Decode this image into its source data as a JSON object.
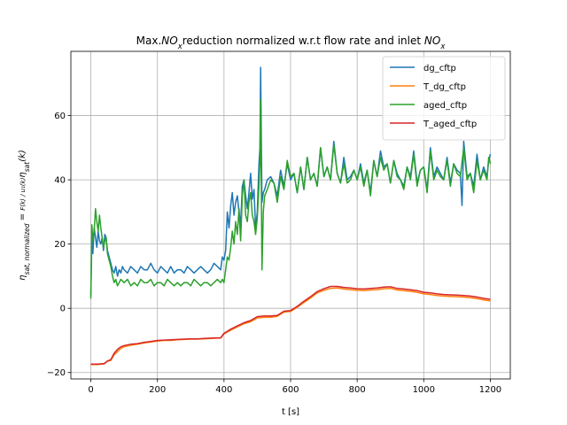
{
  "chart_data": {
    "type": "line",
    "title_parts": [
      {
        "t": "Max.",
        "it": false
      },
      {
        "t": "NO",
        "it": true
      },
      {
        "t": "x",
        "it": true,
        "sub": true
      },
      {
        "t": "reduction normalized w.r.t flow rate and inlet ",
        "it": false
      },
      {
        "t": "NO",
        "it": true
      },
      {
        "t": "x",
        "it": true,
        "sub": true
      }
    ],
    "xlabel": "t [s]",
    "ylabel_parts": [
      {
        "t": "η",
        "it": true
      },
      {
        "t": "sat, normalized",
        "it": true,
        "sub": true
      },
      {
        "t": " = ",
        "it": false
      },
      {
        "t": "F(k) / u₁(k)",
        "it": true,
        "frac": true
      },
      {
        "t": "η",
        "it": true
      },
      {
        "t": "sat",
        "it": true,
        "sub": true
      },
      {
        "t": "(k)",
        "it": true
      }
    ],
    "xlim": [
      -60,
      1260
    ],
    "ylim": [
      -22,
      80
    ],
    "xticks": [
      0,
      200,
      400,
      600,
      800,
      1000,
      1200
    ],
    "yticks": [
      -20,
      0,
      20,
      40,
      60
    ],
    "grid": true,
    "legend_position": "top-right",
    "series": [
      {
        "name": "dg_cftp",
        "color": "#1f77b4",
        "x": [
          0,
          3,
          6,
          10,
          14,
          18,
          22,
          26,
          30,
          34,
          38,
          42,
          46,
          50,
          55,
          60,
          65,
          70,
          75,
          80,
          85,
          90,
          95,
          100,
          110,
          120,
          130,
          140,
          150,
          160,
          170,
          180,
          190,
          200,
          210,
          220,
          230,
          240,
          250,
          260,
          270,
          280,
          290,
          300,
          310,
          320,
          330,
          340,
          350,
          360,
          370,
          380,
          390,
          395,
          400,
          405,
          410,
          415,
          420,
          425,
          430,
          435,
          440,
          445,
          450,
          455,
          460,
          465,
          470,
          475,
          480,
          485,
          490,
          495,
          500,
          505,
          508,
          510,
          512,
          514,
          518,
          522,
          530,
          540,
          550,
          560,
          570,
          580,
          590,
          600,
          610,
          620,
          630,
          640,
          650,
          660,
          670,
          680,
          690,
          700,
          710,
          720,
          730,
          740,
          750,
          760,
          770,
          780,
          790,
          800,
          810,
          820,
          830,
          840,
          850,
          860,
          870,
          880,
          890,
          900,
          910,
          920,
          930,
          940,
          950,
          960,
          970,
          980,
          990,
          1000,
          1010,
          1020,
          1030,
          1040,
          1050,
          1060,
          1070,
          1080,
          1090,
          1100,
          1110,
          1115,
          1120,
          1130,
          1140,
          1150,
          1160,
          1170,
          1180,
          1190,
          1195,
          1200
        ],
        "y": [
          4,
          22,
          17,
          25,
          22,
          19,
          24,
          21,
          20,
          22,
          18,
          23,
          22,
          18,
          16,
          14,
          12,
          11,
          13,
          10,
          12,
          11,
          13,
          12,
          11,
          13,
          12,
          11,
          13,
          12,
          12,
          14,
          12,
          11,
          13,
          12,
          11,
          13,
          11,
          12,
          12,
          11,
          13,
          12,
          11,
          12,
          13,
          12,
          11,
          12,
          14,
          13,
          12,
          16,
          15,
          18,
          30,
          25,
          32,
          36,
          29,
          33,
          35,
          30,
          26,
          38,
          40,
          35,
          31,
          36,
          42,
          34,
          37,
          25,
          30,
          45,
          50,
          75,
          55,
          33,
          36,
          37,
          40,
          41,
          39,
          35,
          43,
          38,
          45,
          40,
          42,
          36,
          44,
          37,
          47,
          40,
          42,
          38,
          50,
          41,
          44,
          40,
          52,
          42,
          39,
          47,
          40,
          41,
          43,
          40,
          45,
          39,
          43,
          36,
          46,
          41,
          49,
          44,
          45,
          39,
          46,
          42,
          40,
          38,
          44,
          41,
          49,
          39,
          43,
          44,
          37,
          50,
          41,
          44,
          42,
          40,
          47,
          39,
          45,
          43,
          42,
          32,
          52,
          41,
          42,
          38,
          48,
          40,
          44,
          41,
          46,
          48
        ]
      },
      {
        "name": "T_dg_cftp",
        "color": "#ff7f0e",
        "x": [
          0,
          20,
          40,
          50,
          60,
          70,
          80,
          90,
          100,
          120,
          140,
          160,
          180,
          200,
          220,
          240,
          260,
          280,
          300,
          320,
          340,
          360,
          380,
          390,
          400,
          420,
          440,
          460,
          480,
          500,
          520,
          540,
          560,
          580,
          600,
          620,
          640,
          660,
          680,
          700,
          720,
          740,
          760,
          780,
          800,
          820,
          840,
          860,
          880,
          900,
          920,
          940,
          960,
          980,
          1000,
          1020,
          1040,
          1060,
          1080,
          1100,
          1120,
          1140,
          1160,
          1180,
          1200
        ],
        "y": [
          -17.5,
          -17.5,
          -17.3,
          -16.5,
          -16.2,
          -14.5,
          -13.5,
          -12.5,
          -12.0,
          -11.5,
          -11.2,
          -10.8,
          -10.5,
          -10.2,
          -10.0,
          -10.0,
          -9.8,
          -9.7,
          -9.6,
          -9.6,
          -9.5,
          -9.4,
          -9.3,
          -9.3,
          -8.0,
          -6.8,
          -5.8,
          -4.8,
          -4.2,
          -3.0,
          -2.8,
          -2.8,
          -2.5,
          -1.2,
          -1.0,
          0.3,
          1.8,
          3.2,
          4.8,
          5.6,
          6.2,
          6.3,
          6.0,
          5.8,
          5.6,
          5.5,
          5.7,
          5.8,
          6.1,
          6.2,
          5.7,
          5.5,
          5.3,
          5.0,
          4.5,
          4.3,
          4.0,
          3.8,
          3.7,
          3.6,
          3.5,
          3.3,
          3.0,
          2.6,
          2.3
        ]
      },
      {
        "name": "aged_cftp",
        "color": "#2ca02c",
        "x": [
          0,
          3,
          6,
          10,
          14,
          18,
          22,
          26,
          30,
          34,
          38,
          42,
          46,
          50,
          55,
          60,
          65,
          70,
          75,
          80,
          90,
          100,
          110,
          120,
          130,
          140,
          150,
          160,
          170,
          180,
          190,
          200,
          210,
          220,
          230,
          240,
          250,
          260,
          270,
          280,
          290,
          300,
          310,
          320,
          330,
          340,
          350,
          360,
          370,
          380,
          390,
          395,
          400,
          405,
          410,
          415,
          420,
          425,
          430,
          435,
          440,
          445,
          450,
          455,
          460,
          465,
          470,
          475,
          480,
          485,
          490,
          495,
          500,
          505,
          508,
          510,
          512,
          514,
          518,
          522,
          530,
          540,
          550,
          560,
          570,
          580,
          590,
          600,
          610,
          620,
          630,
          640,
          650,
          660,
          670,
          680,
          690,
          700,
          710,
          720,
          730,
          740,
          750,
          760,
          770,
          780,
          790,
          800,
          810,
          820,
          830,
          840,
          850,
          860,
          870,
          880,
          890,
          900,
          910,
          920,
          930,
          940,
          950,
          960,
          970,
          980,
          990,
          1000,
          1010,
          1020,
          1030,
          1040,
          1050,
          1060,
          1070,
          1080,
          1090,
          1100,
          1110,
          1120,
          1130,
          1140,
          1150,
          1160,
          1170,
          1180,
          1190,
          1195,
          1200
        ],
        "y": [
          3,
          26,
          21,
          24,
          31,
          27,
          24,
          29,
          25,
          22,
          19,
          21,
          22,
          17,
          15,
          13,
          10,
          8,
          9,
          7,
          9,
          8,
          9,
          7,
          8,
          7,
          9,
          8,
          8,
          9,
          7,
          8,
          8,
          7,
          9,
          8,
          7,
          8,
          7,
          8,
          8,
          7,
          9,
          8,
          7,
          8,
          8,
          7,
          8,
          9,
          8,
          9,
          8,
          12,
          16,
          15,
          19,
          24,
          20,
          27,
          23,
          31,
          21,
          35,
          40,
          29,
          27,
          33,
          36,
          29,
          27,
          23,
          28,
          38,
          46,
          65,
          40,
          12,
          30,
          35,
          37,
          40,
          39,
          33,
          41,
          37,
          46,
          41,
          42,
          36,
          44,
          37,
          47,
          40,
          42,
          38,
          50,
          41,
          44,
          40,
          51,
          42,
          39,
          45,
          39,
          40,
          43,
          40,
          44,
          38,
          43,
          35,
          46,
          41,
          47,
          43,
          45,
          39,
          46,
          41,
          40,
          37,
          44,
          40,
          48,
          38,
          43,
          44,
          36,
          49,
          40,
          43,
          41,
          40,
          46,
          38,
          45,
          42,
          41,
          50,
          40,
          42,
          36,
          46,
          40,
          43,
          40,
          47,
          45
        ]
      },
      {
        "name": "T_aged_cftp",
        "color": "#d62728",
        "x": [
          0,
          20,
          40,
          50,
          60,
          70,
          80,
          90,
          100,
          120,
          140,
          160,
          180,
          200,
          220,
          240,
          260,
          280,
          300,
          320,
          340,
          360,
          380,
          390,
          400,
          420,
          440,
          460,
          480,
          500,
          520,
          540,
          560,
          580,
          600,
          620,
          640,
          660,
          680,
          700,
          720,
          740,
          760,
          780,
          800,
          820,
          840,
          860,
          880,
          900,
          920,
          940,
          960,
          980,
          1000,
          1020,
          1040,
          1060,
          1080,
          1100,
          1120,
          1140,
          1160,
          1180,
          1200
        ],
        "y": [
          -17.4,
          -17.4,
          -17.2,
          -16.4,
          -16.0,
          -14.0,
          -12.8,
          -12.0,
          -11.6,
          -11.2,
          -11.0,
          -10.6,
          -10.3,
          -10.0,
          -9.9,
          -9.8,
          -9.7,
          -9.6,
          -9.5,
          -9.5,
          -9.4,
          -9.3,
          -9.2,
          -9.2,
          -7.8,
          -6.5,
          -5.5,
          -4.5,
          -3.8,
          -2.6,
          -2.4,
          -2.4,
          -2.2,
          -0.9,
          -0.7,
          0.6,
          2.2,
          3.6,
          5.2,
          6.1,
          6.8,
          6.8,
          6.5,
          6.3,
          6.1,
          6.0,
          6.2,
          6.3,
          6.6,
          6.7,
          6.2,
          6.0,
          5.8,
          5.5,
          5.0,
          4.8,
          4.5,
          4.3,
          4.2,
          4.1,
          4.0,
          3.8,
          3.5,
          3.1,
          2.8
        ]
      }
    ]
  }
}
